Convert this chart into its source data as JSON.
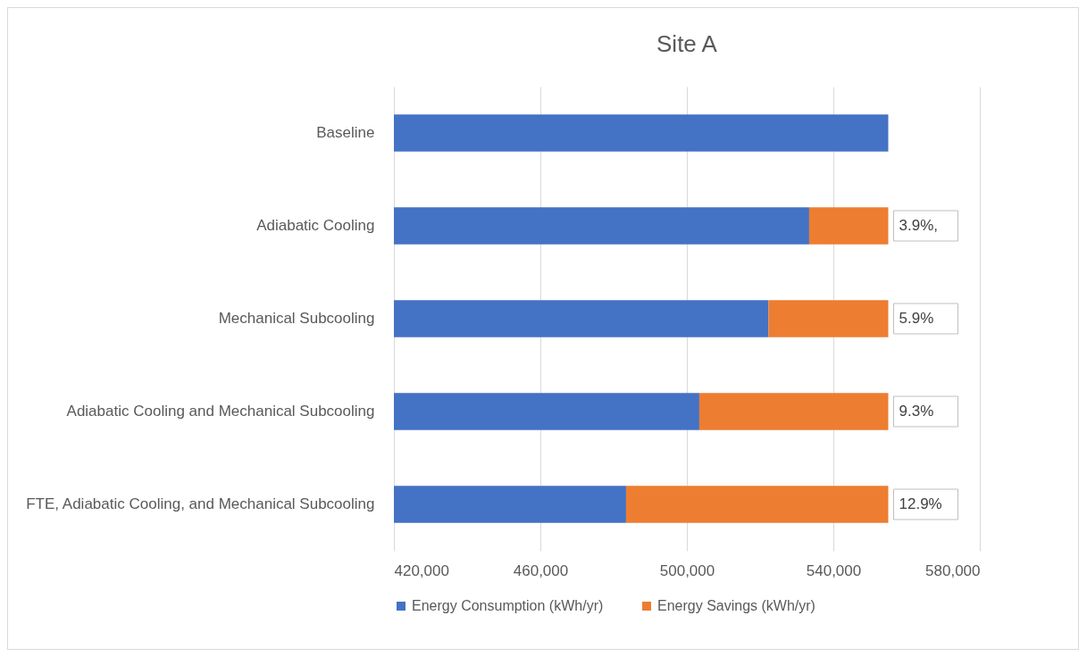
{
  "chart_data": {
    "type": "bar",
    "orientation": "horizontal",
    "stacked": true,
    "title": "Site A",
    "categories": [
      "Baseline",
      "Adiabatic Cooling",
      "Mechanical Subcooling",
      "Adiabatic Cooling and Mechanical Subcooling",
      "FTE, Adiabatic Cooling, and Mechanical Subcooling"
    ],
    "series": [
      {
        "name": "Energy Consumption (kWh/yr)",
        "color": "#4472c4",
        "values": [
          555000,
          533400,
          522300,
          503400,
          483400
        ]
      },
      {
        "name": "Energy Savings (kWh/yr)",
        "color": "#ed7d31",
        "values": [
          null,
          21600,
          32700,
          51600,
          71600
        ],
        "base": [
          null,
          533400,
          522300,
          503400,
          483400
        ]
      }
    ],
    "annotations": [
      "3.9%,",
      "5.9%",
      "9.3%",
      "12.9%"
    ],
    "xlim": [
      420000,
      580000
    ],
    "xticks": [
      {
        "value": 420000,
        "label": "420,000"
      },
      {
        "value": 460000,
        "label": "460,000"
      },
      {
        "value": 500000,
        "label": "500,000"
      },
      {
        "value": 540000,
        "label": "540,000"
      },
      {
        "value": 580000,
        "label": "580,000"
      }
    ],
    "grid": "x",
    "legend": "bottom"
  }
}
